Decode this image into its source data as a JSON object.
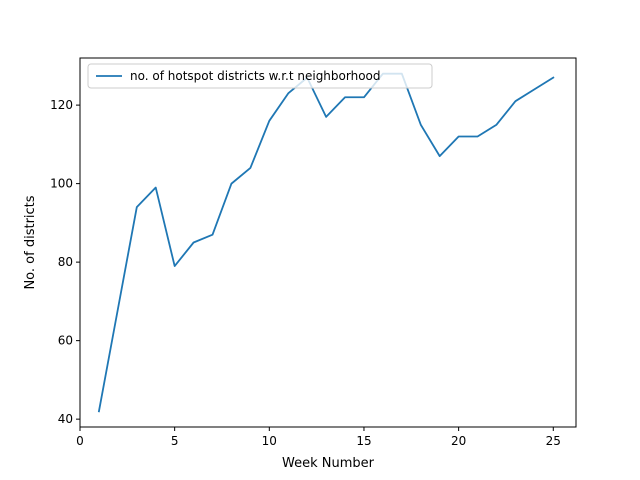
{
  "chart_data": {
    "type": "line",
    "title": "",
    "xlabel": "Week Number",
    "ylabel": "No. of districts",
    "xlim": [
      0,
      26.2
    ],
    "ylim": [
      38,
      132
    ],
    "xticks": [
      0,
      5,
      10,
      15,
      20,
      25
    ],
    "yticks": [
      40,
      60,
      80,
      100,
      120
    ],
    "grid": false,
    "legend_position": "top-left",
    "series": [
      {
        "name": "no. of hotspot districts w.r.t neighborhood",
        "color": "#1f77b4",
        "x": [
          1,
          2,
          3,
          4,
          5,
          6,
          7,
          8,
          9,
          10,
          11,
          12,
          13,
          14,
          15,
          16,
          17,
          18,
          19,
          20,
          21,
          22,
          23,
          24,
          25
        ],
        "y": [
          42,
          68,
          94,
          99,
          79,
          85,
          87,
          100,
          104,
          116,
          123,
          127,
          117,
          122,
          122,
          128,
          128,
          115,
          107,
          112,
          112,
          115,
          121,
          124,
          127
        ]
      }
    ]
  }
}
